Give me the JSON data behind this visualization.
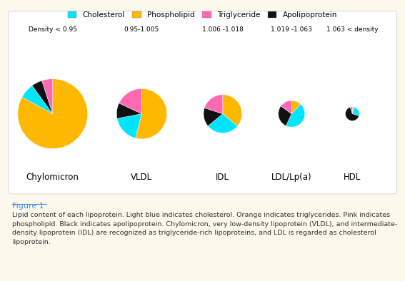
{
  "lipoproteins": [
    "Chylomicron",
    "VLDL",
    "IDL",
    "LDL/Lp(a)",
    "HDL"
  ],
  "density_labels": [
    "Density < 0.95",
    "0.95-1.005",
    "1.006 -1.018",
    "1.019 -1.063",
    "1.063 < density"
  ],
  "sizes": [
    1.0,
    0.72,
    0.55,
    0.38,
    0.2
  ],
  "compositions": {
    "Chylomicron": [
      7,
      5,
      83,
      5
    ],
    "VLDL": [
      18,
      18,
      54,
      10
    ],
    "IDL": [
      28,
      20,
      36,
      16
    ],
    "LDL/Lp(a)": [
      45,
      15,
      12,
      28
    ],
    "HDL": [
      25,
      5,
      5,
      65
    ]
  },
  "colors": [
    "#00e5ff",
    "#ff69b4",
    "#ffb800",
    "#111111"
  ],
  "legend_labels": [
    "Cholesterol",
    "Phospholipid",
    "Triglyceride",
    "Apolipoprotein"
  ],
  "background_color": "#fdf8ec",
  "chart_background": "#ffffff",
  "x_positions": [
    0.13,
    0.35,
    0.55,
    0.72,
    0.87
  ]
}
